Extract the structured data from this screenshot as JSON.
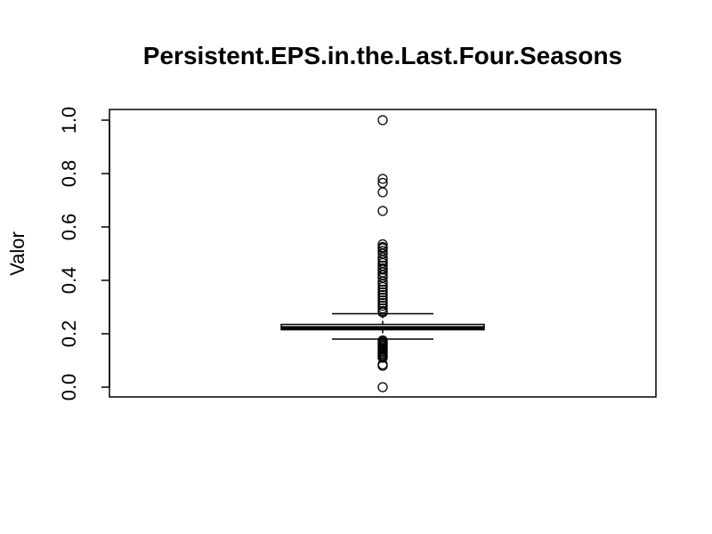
{
  "chart_data": {
    "type": "boxplot",
    "title": "Persistent.EPS.in.the.Last.Four.Seasons",
    "xlabel": "",
    "ylabel": "Valor",
    "ylim": [
      0,
      1
    ],
    "y_ticks": [
      0.0,
      0.2,
      0.4,
      0.6,
      0.8,
      1.0
    ],
    "y_tick_labels": [
      "0.0",
      "0.2",
      "0.4",
      "0.6",
      "0.8",
      "1.0"
    ],
    "grid": false,
    "legend": "none",
    "box": {
      "q1": 0.215,
      "median": 0.222,
      "q3": 0.235,
      "whisker_low": 0.18,
      "whisker_high": 0.275
    },
    "outliers": [
      1.0,
      0.78,
      0.765,
      0.73,
      0.66,
      0.535,
      0.525,
      0.52,
      0.51,
      0.5,
      0.485,
      0.475,
      0.465,
      0.455,
      0.445,
      0.44,
      0.43,
      0.42,
      0.41,
      0.395,
      0.385,
      0.375,
      0.365,
      0.355,
      0.345,
      0.335,
      0.325,
      0.315,
      0.305,
      0.295,
      0.285,
      0.28,
      0.175,
      0.17,
      0.165,
      0.16,
      0.155,
      0.15,
      0.145,
      0.14,
      0.135,
      0.13,
      0.125,
      0.12,
      0.115,
      0.11,
      0.085,
      0.08,
      0.0
    ]
  }
}
